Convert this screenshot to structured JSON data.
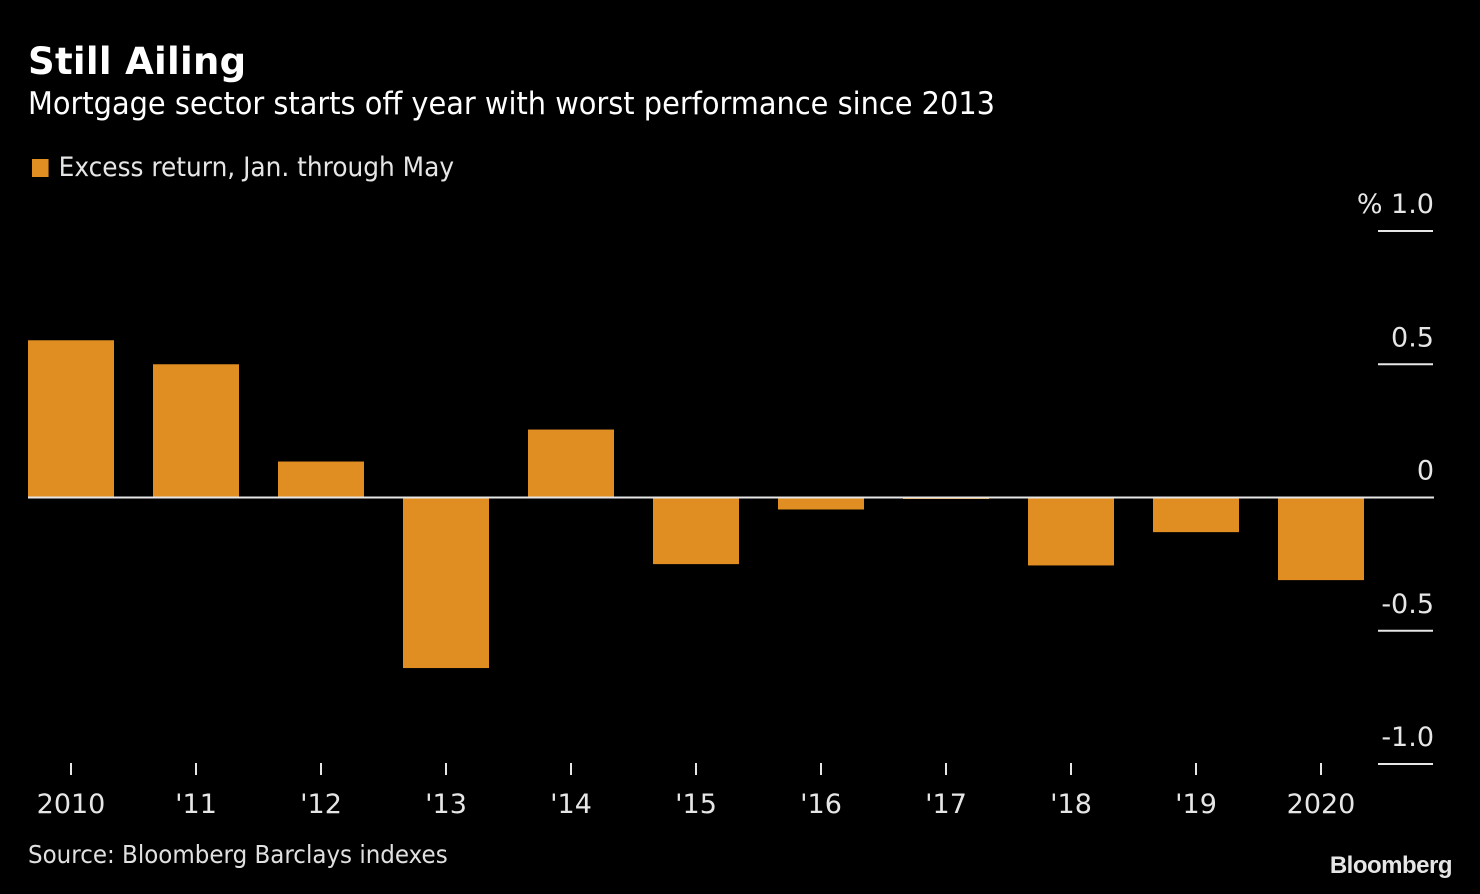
{
  "chart_data": {
    "type": "bar",
    "title": "Still Ailing",
    "subtitle": "Mortgage sector starts off year with worst performance since 2013",
    "categories": [
      "2010",
      "'11",
      "'12",
      "'13",
      "'14",
      "'15",
      "'16",
      "'17",
      "'18",
      "'19",
      "2020"
    ],
    "series": [
      {
        "name": "Excess return, Jan. through May",
        "color": "#e08d22",
        "values": [
          0.59,
          0.5,
          0.135,
          -0.64,
          0.255,
          -0.25,
          -0.045,
          -0.005,
          -0.255,
          -0.13,
          -0.31
        ]
      }
    ],
    "xlabel": "",
    "ylabel": "%",
    "ylim": [
      -1.0,
      1.0
    ],
    "yticks": [
      1.0,
      0.5,
      0,
      -0.5,
      -1.0
    ],
    "ytick_labels": [
      "% 1.0",
      "0.5",
      "0",
      "-0.5",
      "-1.0"
    ],
    "y_axis_side": "right",
    "grid": false,
    "legend_position": "top-left",
    "source": "Source: Bloomberg Barclays indexes",
    "brand": "Bloomberg"
  },
  "colors": {
    "background": "#000000",
    "bar": "#e08d22",
    "zero_line": "#e6e6e6",
    "text": "#e6e6e6"
  }
}
